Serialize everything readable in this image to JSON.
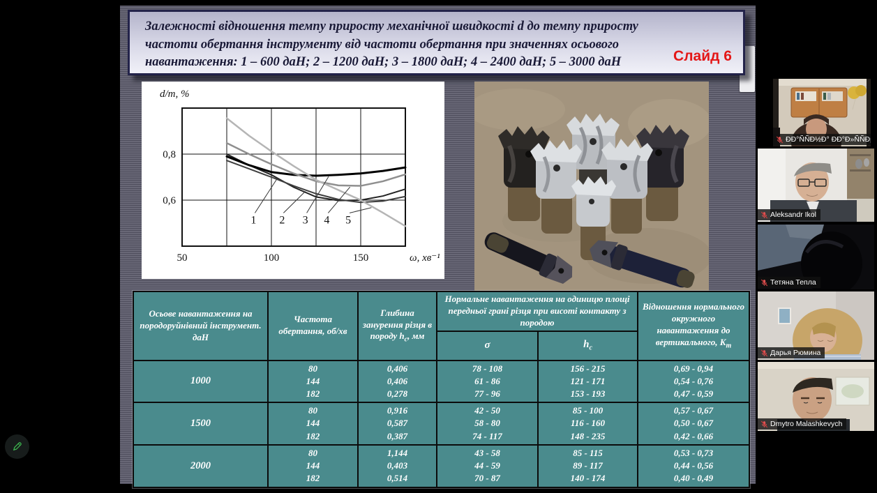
{
  "slide": {
    "title": "Залежності відношення темпу приросту механічної швидкості d до темпу приросту частоти обертання інструменту від частоти обертання при значеннях осьового навантаження: 1 – 600 даН; 2 – 1200 даН; 3 – 1800 даН; 4 – 2400 даН; 5 – 3000 даН",
    "badge": "Слайд 6"
  },
  "chart_data": {
    "type": "line",
    "title": "",
    "xlabel": "ω, хв⁻¹",
    "ylabel": "d/m, %",
    "xlim": [
      50,
      175
    ],
    "ylim": [
      0.4,
      1.0
    ],
    "grid": true,
    "legend_position": "none",
    "xtick_values": [
      50,
      100,
      150
    ],
    "xtick_labels": [
      "50",
      "100",
      "150"
    ],
    "ytick_values": [
      0.8,
      0.6
    ],
    "ytick_labels": [
      "0,8",
      "0,6"
    ],
    "grid_x": [
      75,
      100,
      125,
      150
    ],
    "grid_y": [
      0.6,
      0.8
    ],
    "x": [
      75,
      87.5,
      100,
      112.5,
      125,
      137.5,
      150,
      162.5,
      175
    ],
    "series": [
      {
        "label": "1",
        "name": "600 даН",
        "color": "#222222",
        "width": 2,
        "values": [
          0.8,
          0.752,
          0.71,
          0.656,
          0.614,
          0.598,
          0.6,
          0.618,
          0.648
        ]
      },
      {
        "label": "2",
        "name": "1200 даН",
        "color": "#3f3f3f",
        "width": 2,
        "values": [
          0.772,
          0.736,
          0.7,
          0.662,
          0.628,
          0.603,
          0.59,
          0.596,
          0.616
        ]
      },
      {
        "label": "3",
        "name": "1800 даН",
        "color": "#000000",
        "width": 3,
        "values": [
          0.79,
          0.752,
          0.722,
          0.71,
          0.706,
          0.71,
          0.716,
          0.727,
          0.742
        ]
      },
      {
        "label": "4",
        "name": "2400 даН",
        "color": "#8f8f8f",
        "width": 2.5,
        "values": [
          0.848,
          0.8,
          0.756,
          0.716,
          0.682,
          0.664,
          0.662,
          0.682,
          0.712
        ]
      },
      {
        "label": "5",
        "name": "3000 даН",
        "color": "#b5b5b5",
        "width": 2.5,
        "values": [
          0.956,
          0.88,
          0.812,
          0.748,
          0.688,
          0.644,
          0.6,
          0.545,
          0.487
        ]
      }
    ],
    "curve_labels": [
      {
        "text": "1",
        "x": 90,
        "y": 0.52
      },
      {
        "text": "2",
        "x": 106,
        "y": 0.52
      },
      {
        "text": "3",
        "x": 119,
        "y": 0.52
      },
      {
        "text": "4",
        "x": 131,
        "y": 0.52
      },
      {
        "text": "5",
        "x": 143,
        "y": 0.52
      }
    ]
  },
  "table": {
    "headers": {
      "c1": "Осьове навантаження на породоруйнівний інструмент. даН",
      "c2": "Частота обертання, об/хв",
      "c3_main": "Глибина занурення різця в породу ",
      "c3_sym": "h",
      "c3_sub": "с",
      "c3_unit": ", мм",
      "c45": "Нормальне навантаження на одиницю площі передньої грані різця при висоті контакту з породою",
      "c4": "σ",
      "c5_sym": "h",
      "c5_sub": "c",
      "c6_main": "Відношення нормального окружного навантаження до вертикального, ",
      "c6_sym": "K",
      "c6_sub": "m"
    },
    "groups": [
      {
        "load": "1000",
        "freq": [
          "80",
          "144",
          "182"
        ],
        "depth": [
          "0,406",
          "0,406",
          "0,278"
        ],
        "sigma": [
          "78 - 108",
          "61 - 86",
          "77 - 96"
        ],
        "hc": [
          "156 - 215",
          "121 - 171",
          "153 - 193"
        ],
        "km": [
          "0,69 - 0,94",
          "0,54 - 0,76",
          "0,47 - 0,59"
        ]
      },
      {
        "load": "1500",
        "freq": [
          "80",
          "144",
          "182"
        ],
        "depth": [
          "0,916",
          "0,587",
          "0,387"
        ],
        "sigma": [
          "42 - 50",
          "58 - 80",
          "74 - 117"
        ],
        "hc": [
          "85 - 100",
          "116 - 160",
          "148 - 235"
        ],
        "km": [
          "0,57 - 0,67",
          "0,50 - 0,67",
          "0,42 - 0,66"
        ]
      },
      {
        "load": "2000",
        "freq": [
          "80",
          "144",
          "182"
        ],
        "depth": [
          "1,144",
          "0,403",
          "0,514"
        ],
        "sigma": [
          "43 - 58",
          "44 - 59",
          "70 - 87"
        ],
        "hc": [
          "85 - 115",
          "89 - 117",
          "140 - 174"
        ],
        "km": [
          "0,53 - 0,73",
          "0,44 - 0,56",
          "0,40 - 0,49"
        ]
      }
    ]
  },
  "participants": [
    {
      "name": "ĐĐ°ÑÑĐ½Đ° ĐĐ°Đ»ÑÑĐµĐ½Đ..",
      "muted": true
    },
    {
      "name": "Aleksandr Ikol",
      "muted": true
    },
    {
      "name": "Тетяна Тепла",
      "muted": true
    },
    {
      "name": "Дарья Рюмина",
      "muted": true
    },
    {
      "name": "Dmytro Malashkevych",
      "muted": true
    }
  ],
  "icons": {
    "mic_muted": "mic-muted-icon",
    "pencil": "pencil-icon"
  },
  "colors": {
    "badge_red": "#e41717",
    "table_teal": "#4a8b8d",
    "mic_red": "#e05454",
    "pencil_green": "#3cb54e",
    "slide_stripe": "#686776"
  }
}
